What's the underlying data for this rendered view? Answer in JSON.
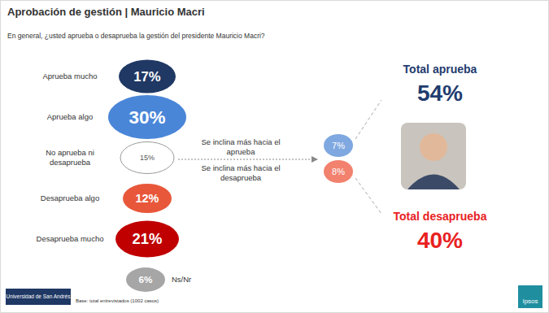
{
  "chart_data": {
    "type": "bubble",
    "title": "Aprobación de gestión | Mauricio Macri",
    "subtitle": "En general, ¿usted aprueba o desaprueba la gestión del presidente Mauricio Macri?",
    "categories": [
      "Aprueba mucho",
      "Aprueba algo",
      "No aprueba ni desaprueba",
      "Desaprueba algo",
      "Desaprueba mucho",
      "Ns/Nr"
    ],
    "values": [
      17,
      30,
      15,
      12,
      21,
      6
    ],
    "value_labels": [
      "17%",
      "30%",
      "15%",
      "12%",
      "21%",
      "6%"
    ],
    "colors": [
      "#1f3864",
      "#4a86d8",
      "#ffffff",
      "#e8573a",
      "#c00000",
      "#a6a6a6"
    ],
    "data_labels": true,
    "tick_labels": false,
    "leaning": {
      "categories": [
        "Se inclina más hacia el aprueba",
        "Se inclina más hacia el desaprueba"
      ],
      "values": [
        7,
        8
      ],
      "value_labels": [
        "7%",
        "8%"
      ],
      "colors": [
        "#7fa8e0",
        "#f2816e"
      ]
    },
    "totals": [
      {
        "name": "Total aprueba",
        "value": 54,
        "value_label": "54%",
        "color": "#1f3c6e"
      },
      {
        "name": "Total desaprueba",
        "value": 40,
        "value_label": "40%",
        "color": "#e8211f"
      }
    ],
    "note": "Base: total entrevistados (1002 casos)",
    "logos": [
      "Universidad de San Andrés",
      "Ipsos"
    ]
  }
}
